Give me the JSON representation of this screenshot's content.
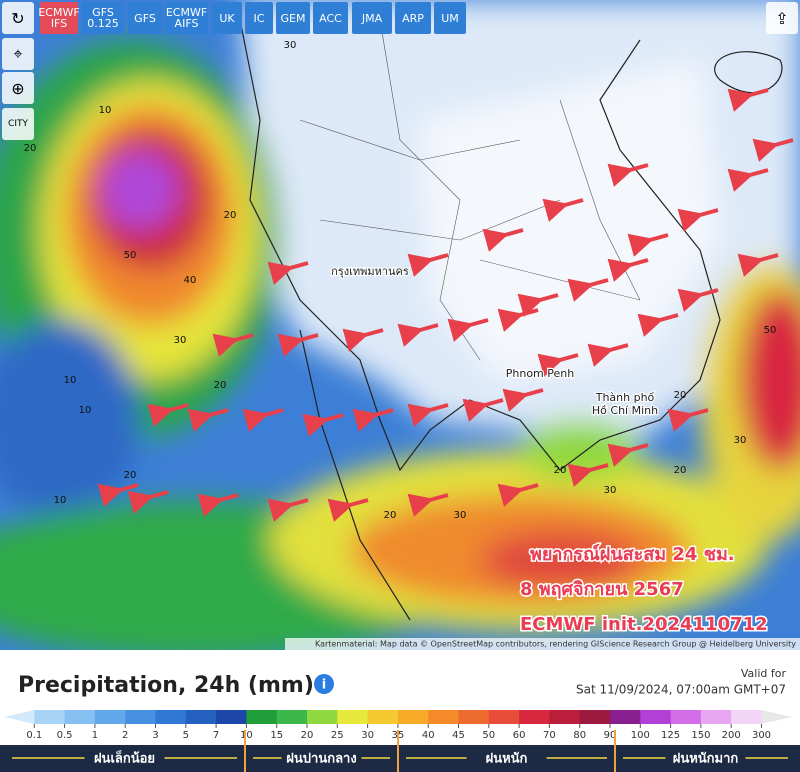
{
  "toolbar": {
    "models": [
      "ECMWF\nIFS",
      "GFS\n0.125",
      "GFS",
      "ECMWF\nAIFS",
      "UK",
      "IC",
      "GEM",
      "ACC",
      "JMA",
      "ARP",
      "UM"
    ],
    "city_toggle": "CITY"
  },
  "map": {
    "places": [
      "กรุงเทพมหานคร",
      "Phnom Penh",
      "Thành phố\nHồ Chí Minh"
    ],
    "contour_labels": [
      30,
      20,
      50,
      40,
      10,
      20,
      30,
      10,
      20,
      20,
      10,
      20,
      30,
      20,
      30,
      50,
      30,
      20,
      10,
      20
    ],
    "overlay": [
      "พยากรณ์ฝนสะสม 24 ชม.",
      "8 พฤศจิกายน 2567",
      "ECMWF init.2024110712"
    ],
    "attribution": "Kartenmaterial: Map data © OpenStreetMap contributors, rendering GIScience Research Group @ Heidelberg University"
  },
  "legend": {
    "title": "Precipitation, 24h (mm)",
    "valid_label": "Valid for",
    "valid_time": "Sat 11/09/2024, 07:00am GMT+07",
    "ticks": [
      0.1,
      0.5,
      1,
      2,
      3,
      5,
      7,
      10,
      15,
      20,
      25,
      30,
      35,
      40,
      45,
      50,
      60,
      70,
      80,
      90,
      100,
      125,
      150,
      200,
      300
    ],
    "colors": [
      "#d2e8fb",
      "#a7d3f7",
      "#86c0f2",
      "#62a9ec",
      "#4691e2",
      "#3078d6",
      "#2360c0",
      "#1c47a8",
      "#1f9e3a",
      "#3cb84a",
      "#8fd83f",
      "#e6e83a",
      "#f5c930",
      "#f7a928",
      "#f58a2a",
      "#ee6b2f",
      "#e84d3c",
      "#d8283f",
      "#bb1e3a",
      "#9c1a40",
      "#8a1f8f",
      "#b23fd6",
      "#d36ee8",
      "#e8a5f2",
      "#f3d6f7",
      "#e8e8e8"
    ],
    "categories": [
      "ฝนเล็กน้อย",
      "ฝนปานกลาง",
      "ฝนหนัก",
      "ฝนหนักมาก"
    ]
  }
}
